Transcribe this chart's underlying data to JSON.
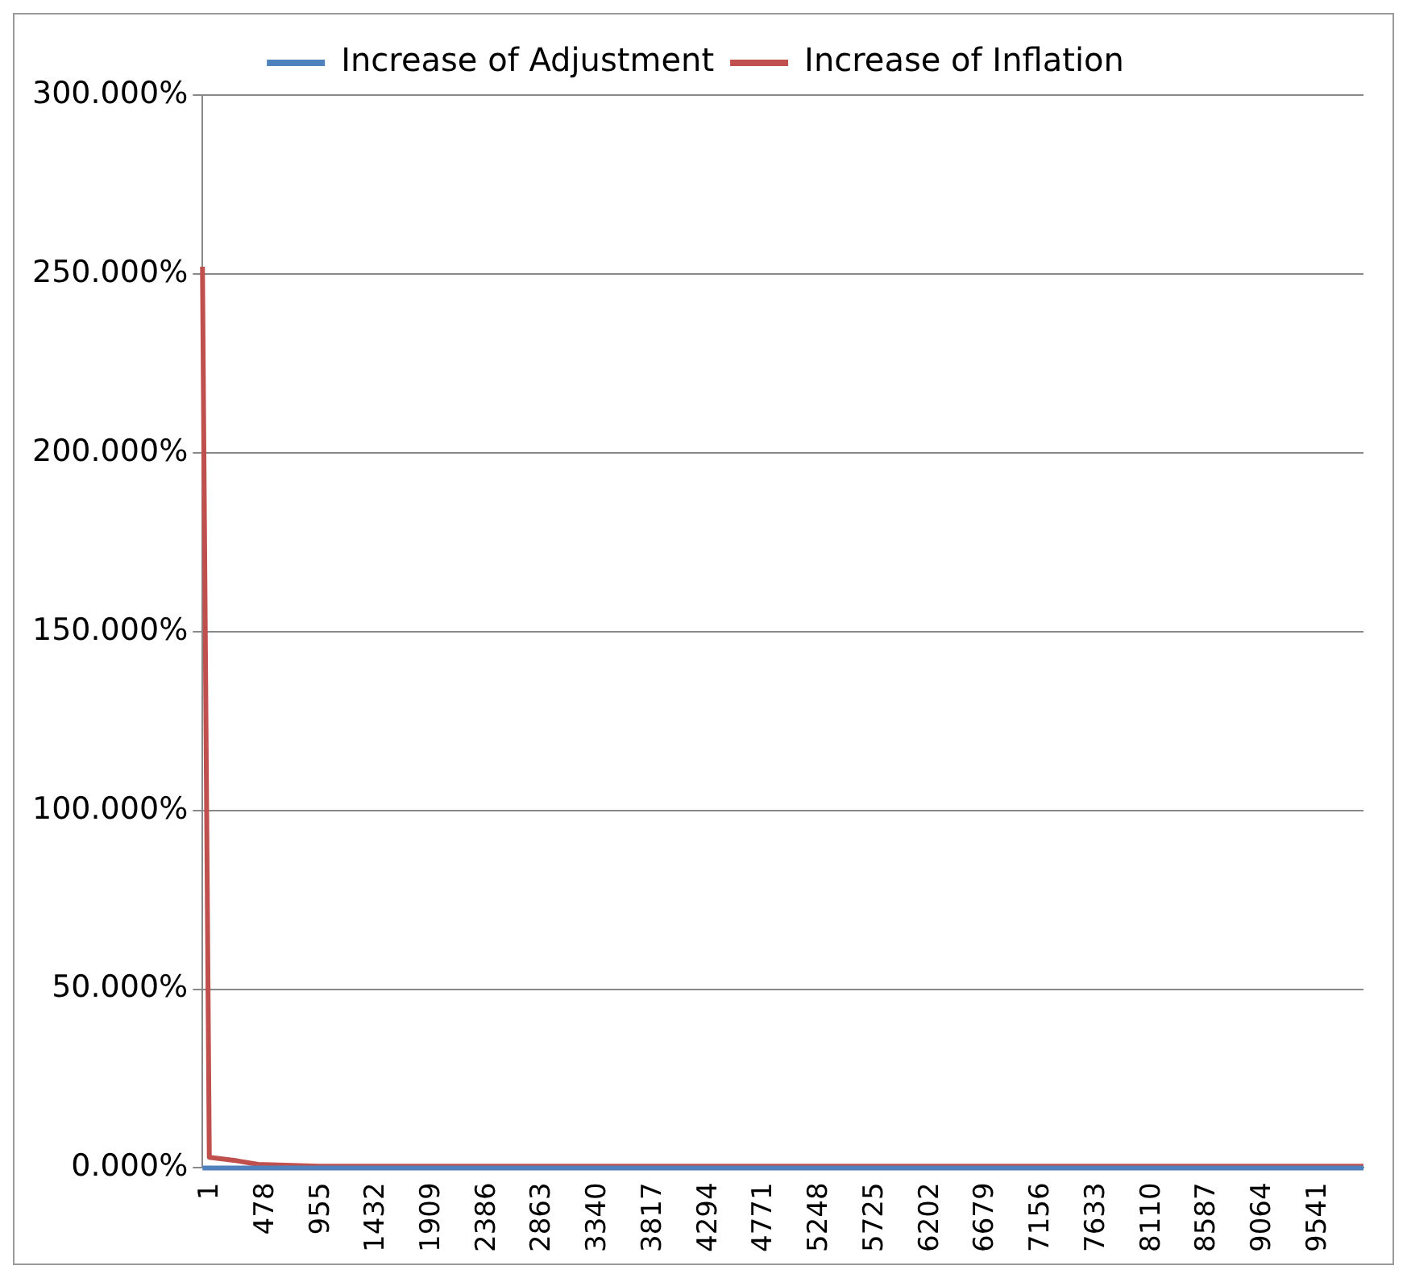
{
  "chart_data": {
    "type": "line",
    "legend": "top",
    "grid": "y",
    "marker": "none",
    "line_style": "solid",
    "xlim": [
      1,
      10000
    ],
    "xticks": [
      1,
      478,
      955,
      1432,
      1909,
      2386,
      2863,
      3340,
      3817,
      4294,
      4771,
      5248,
      5725,
      6202,
      6679,
      7156,
      7633,
      8110,
      8587,
      9064,
      9541
    ],
    "ylim": [
      0,
      300
    ],
    "yticks": [
      {
        "value": 0,
        "label": "0.000%"
      },
      {
        "value": 50,
        "label": "50.000%"
      },
      {
        "value": 100,
        "label": "100.000%"
      },
      {
        "value": 150,
        "label": "150.000%"
      },
      {
        "value": 200,
        "label": "200.000%"
      },
      {
        "value": 250,
        "label": "250.000%"
      },
      {
        "value": 300,
        "label": "300.000%"
      }
    ],
    "series": [
      {
        "name": "Increase of Adjustment",
        "color": "#4f81bd",
        "x": [
          1,
          10000
        ],
        "values": [
          0,
          0
        ]
      },
      {
        "name": "Increase of Inflation",
        "color": "#c0504d",
        "x": [
          1,
          60,
          300,
          480,
          1000,
          10000
        ],
        "values": [
          252,
          3,
          2,
          1,
          0.5,
          0.5
        ]
      }
    ]
  }
}
